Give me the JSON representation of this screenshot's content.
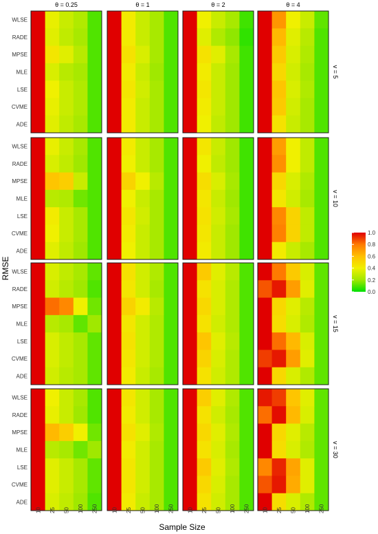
{
  "chart_data": {
    "type": "heatmap",
    "ylabel": "RMSE",
    "xlabel": "Sample Size",
    "column_facets": [
      "θ = 0.25",
      "θ = 1",
      "θ = 2",
      "θ = 4"
    ],
    "row_facets": [
      "v = 5",
      "v = 10",
      "v = 15",
      "v = 30"
    ],
    "methods": [
      "WLSE",
      "RADE",
      "MPSE",
      "MLE",
      "LSE",
      "CVME",
      "ADE"
    ],
    "sample_sizes": [
      "10",
      "25",
      "50",
      "100",
      "250"
    ],
    "legend": {
      "ticks": [
        "1.0",
        "0.8",
        "0.6",
        "0.4",
        "0.2",
        "0.0"
      ],
      "range": [
        0,
        1
      ],
      "colors": [
        "#00e000",
        "#a0e800",
        "#f0f000",
        "#ffc000",
        "#ff7a00",
        "#e00000"
      ]
    },
    "values": [
      [
        [
          [
            1.0,
            0.38,
            0.3,
            0.24,
            0.1
          ],
          [
            1.0,
            0.36,
            0.28,
            0.22,
            0.1
          ],
          [
            1.0,
            0.44,
            0.36,
            0.26,
            0.1
          ],
          [
            1.0,
            0.34,
            0.26,
            0.22,
            0.1
          ],
          [
            1.0,
            0.4,
            0.3,
            0.24,
            0.1
          ],
          [
            1.0,
            0.38,
            0.3,
            0.24,
            0.1
          ],
          [
            1.0,
            0.36,
            0.28,
            0.22,
            0.1
          ]
        ],
        [
          [
            1.0,
            0.42,
            0.3,
            0.22,
            0.1
          ],
          [
            1.0,
            0.42,
            0.3,
            0.22,
            0.1
          ],
          [
            1.0,
            0.46,
            0.34,
            0.22,
            0.1
          ],
          [
            1.0,
            0.42,
            0.3,
            0.2,
            0.1
          ],
          [
            1.0,
            0.44,
            0.32,
            0.22,
            0.1
          ],
          [
            1.0,
            0.42,
            0.3,
            0.22,
            0.1
          ],
          [
            1.0,
            0.42,
            0.3,
            0.22,
            0.1
          ]
        ],
        [
          [
            1.0,
            0.4,
            0.3,
            0.22,
            0.08
          ],
          [
            1.0,
            0.36,
            0.24,
            0.18,
            0.06
          ],
          [
            1.0,
            0.46,
            0.36,
            0.22,
            0.08
          ],
          [
            1.0,
            0.42,
            0.3,
            0.2,
            0.08
          ],
          [
            1.0,
            0.44,
            0.3,
            0.2,
            0.08
          ],
          [
            1.0,
            0.42,
            0.3,
            0.2,
            0.08
          ],
          [
            1.0,
            0.4,
            0.28,
            0.2,
            0.08
          ]
        ],
        [
          [
            1.0,
            0.72,
            0.4,
            0.3,
            0.12
          ],
          [
            1.0,
            0.62,
            0.36,
            0.26,
            0.1
          ],
          [
            1.0,
            0.56,
            0.34,
            0.24,
            0.1
          ],
          [
            1.0,
            0.5,
            0.32,
            0.22,
            0.1
          ],
          [
            1.0,
            0.58,
            0.34,
            0.24,
            0.1
          ],
          [
            1.0,
            0.56,
            0.32,
            0.22,
            0.1
          ],
          [
            1.0,
            0.46,
            0.3,
            0.22,
            0.1
          ]
        ]
      ],
      [
        [
          [
            1.0,
            0.38,
            0.3,
            0.22,
            0.1
          ],
          [
            1.0,
            0.34,
            0.28,
            0.2,
            0.1
          ],
          [
            1.0,
            0.58,
            0.54,
            0.3,
            0.1
          ],
          [
            1.0,
            0.26,
            0.24,
            0.14,
            0.1
          ],
          [
            1.0,
            0.42,
            0.3,
            0.22,
            0.1
          ],
          [
            1.0,
            0.4,
            0.3,
            0.22,
            0.1
          ],
          [
            1.0,
            0.36,
            0.28,
            0.2,
            0.1
          ]
        ],
        [
          [
            1.0,
            0.42,
            0.3,
            0.22,
            0.1
          ],
          [
            1.0,
            0.4,
            0.3,
            0.22,
            0.1
          ],
          [
            1.0,
            0.52,
            0.4,
            0.26,
            0.1
          ],
          [
            1.0,
            0.4,
            0.3,
            0.22,
            0.1
          ],
          [
            1.0,
            0.44,
            0.32,
            0.22,
            0.1
          ],
          [
            1.0,
            0.42,
            0.3,
            0.22,
            0.1
          ],
          [
            1.0,
            0.4,
            0.3,
            0.22,
            0.1
          ]
        ],
        [
          [
            1.0,
            0.44,
            0.3,
            0.2,
            0.08
          ],
          [
            1.0,
            0.4,
            0.28,
            0.2,
            0.08
          ],
          [
            1.0,
            0.48,
            0.34,
            0.22,
            0.08
          ],
          [
            1.0,
            0.44,
            0.3,
            0.2,
            0.08
          ],
          [
            1.0,
            0.46,
            0.32,
            0.22,
            0.08
          ],
          [
            1.0,
            0.44,
            0.3,
            0.2,
            0.08
          ],
          [
            1.0,
            0.42,
            0.3,
            0.2,
            0.08
          ]
        ],
        [
          [
            1.0,
            0.7,
            0.4,
            0.28,
            0.1
          ],
          [
            1.0,
            0.74,
            0.4,
            0.28,
            0.1
          ],
          [
            1.0,
            0.5,
            0.34,
            0.24,
            0.1
          ],
          [
            1.0,
            0.44,
            0.32,
            0.22,
            0.1
          ],
          [
            1.0,
            0.76,
            0.52,
            0.28,
            0.1
          ],
          [
            1.0,
            0.78,
            0.52,
            0.28,
            0.1
          ],
          [
            1.0,
            0.42,
            0.3,
            0.22,
            0.1
          ]
        ]
      ],
      [
        [
          [
            1.0,
            0.34,
            0.28,
            0.22,
            0.12
          ],
          [
            1.0,
            0.32,
            0.26,
            0.2,
            0.1
          ],
          [
            1.0,
            0.82,
            0.76,
            0.4,
            0.14
          ],
          [
            1.0,
            0.26,
            0.22,
            0.12,
            0.2
          ],
          [
            1.0,
            0.34,
            0.28,
            0.22,
            0.12
          ],
          [
            1.0,
            0.34,
            0.28,
            0.22,
            0.12
          ],
          [
            1.0,
            0.32,
            0.26,
            0.22,
            0.12
          ]
        ],
        [
          [
            1.0,
            0.46,
            0.32,
            0.24,
            0.1
          ],
          [
            1.0,
            0.44,
            0.32,
            0.22,
            0.1
          ],
          [
            1.0,
            0.52,
            0.42,
            0.26,
            0.1
          ],
          [
            1.0,
            0.44,
            0.32,
            0.24,
            0.1
          ],
          [
            1.0,
            0.46,
            0.32,
            0.24,
            0.1
          ],
          [
            1.0,
            0.44,
            0.32,
            0.24,
            0.1
          ],
          [
            1.0,
            0.42,
            0.3,
            0.22,
            0.1
          ]
        ],
        [
          [
            1.0,
            0.56,
            0.36,
            0.26,
            0.1
          ],
          [
            1.0,
            0.46,
            0.34,
            0.24,
            0.1
          ],
          [
            1.0,
            0.5,
            0.34,
            0.24,
            0.1
          ],
          [
            1.0,
            0.46,
            0.32,
            0.24,
            0.1
          ],
          [
            1.0,
            0.58,
            0.36,
            0.26,
            0.1
          ],
          [
            1.0,
            0.52,
            0.34,
            0.24,
            0.1
          ],
          [
            1.0,
            0.46,
            0.32,
            0.24,
            0.1
          ]
        ],
        [
          [
            1.0,
            0.8,
            0.56,
            0.34,
            0.12
          ],
          [
            0.86,
            0.96,
            0.7,
            0.36,
            0.12
          ],
          [
            1.0,
            0.5,
            0.36,
            0.26,
            0.12
          ],
          [
            1.0,
            0.48,
            0.34,
            0.24,
            0.12
          ],
          [
            1.0,
            0.82,
            0.62,
            0.34,
            0.12
          ],
          [
            0.9,
            0.96,
            0.7,
            0.36,
            0.12
          ],
          [
            1.0,
            0.5,
            0.34,
            0.24,
            0.12
          ]
        ]
      ],
      [
        [
          [
            1.0,
            0.4,
            0.3,
            0.22,
            0.1
          ],
          [
            1.0,
            0.38,
            0.3,
            0.2,
            0.1
          ],
          [
            1.0,
            0.62,
            0.54,
            0.4,
            0.14
          ],
          [
            1.0,
            0.26,
            0.22,
            0.14,
            0.2
          ],
          [
            1.0,
            0.36,
            0.3,
            0.22,
            0.12
          ],
          [
            1.0,
            0.36,
            0.3,
            0.22,
            0.12
          ],
          [
            1.0,
            0.34,
            0.28,
            0.2,
            0.1
          ]
        ],
        [
          [
            1.0,
            0.44,
            0.32,
            0.22,
            0.1
          ],
          [
            1.0,
            0.42,
            0.32,
            0.22,
            0.1
          ],
          [
            1.0,
            0.46,
            0.36,
            0.24,
            0.1
          ],
          [
            1.0,
            0.42,
            0.32,
            0.22,
            0.1
          ],
          [
            1.0,
            0.44,
            0.32,
            0.22,
            0.1
          ],
          [
            1.0,
            0.44,
            0.32,
            0.22,
            0.1
          ],
          [
            1.0,
            0.42,
            0.3,
            0.22,
            0.1
          ]
        ],
        [
          [
            1.0,
            0.54,
            0.36,
            0.24,
            0.1
          ],
          [
            1.0,
            0.46,
            0.32,
            0.22,
            0.1
          ],
          [
            1.0,
            0.5,
            0.36,
            0.24,
            0.1
          ],
          [
            1.0,
            0.46,
            0.34,
            0.22,
            0.1
          ],
          [
            1.0,
            0.56,
            0.36,
            0.24,
            0.1
          ],
          [
            1.0,
            0.5,
            0.34,
            0.22,
            0.1
          ],
          [
            1.0,
            0.46,
            0.32,
            0.22,
            0.1
          ]
        ],
        [
          [
            0.96,
            0.9,
            0.58,
            0.36,
            0.12
          ],
          [
            0.82,
            0.98,
            0.62,
            0.34,
            0.12
          ],
          [
            1.0,
            0.5,
            0.36,
            0.26,
            0.12
          ],
          [
            1.0,
            0.48,
            0.34,
            0.24,
            0.12
          ],
          [
            0.76,
            0.94,
            0.68,
            0.36,
            0.12
          ],
          [
            0.86,
            0.96,
            0.66,
            0.36,
            0.12
          ],
          [
            1.0,
            0.48,
            0.34,
            0.24,
            0.12
          ]
        ]
      ]
    ]
  }
}
